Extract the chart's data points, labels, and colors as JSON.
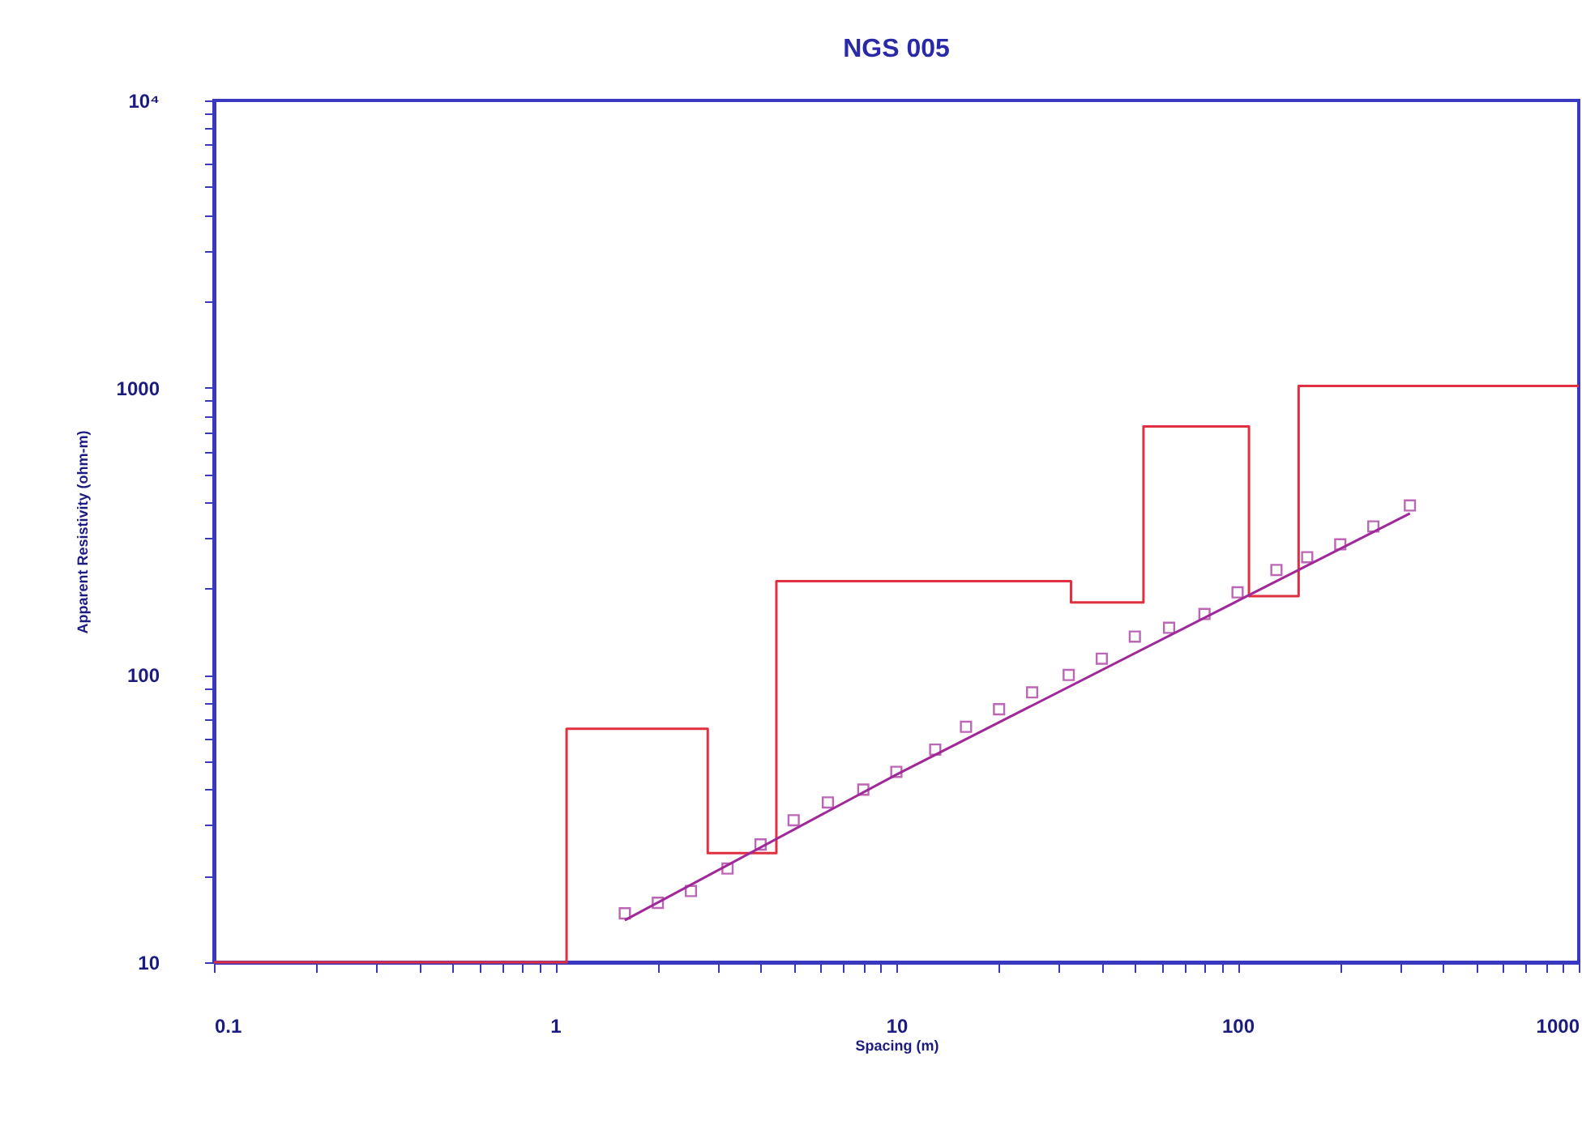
{
  "chart_data": {
    "type": "line",
    "title": "NGS 005",
    "xlabel": "Spacing (m)",
    "ylabel": "Apparent Resistivity (ohm-m)",
    "log": "xy",
    "xlim": [
      0.1,
      1000
    ],
    "ylim": [
      10,
      10000
    ],
    "xticks": [
      0.1,
      {
        "value": 0.2,
        "label": null
      },
      {
        "value": 0.3,
        "label": null
      },
      {
        "value": 0.4,
        "label": null
      },
      {
        "value": 0.5,
        "label": null
      },
      {
        "value": 0.6,
        "label": null
      },
      {
        "value": 0.7,
        "label": null
      },
      {
        "value": 0.8,
        "label": null
      },
      {
        "value": 0.9,
        "label": null
      },
      1,
      {
        "value": 2,
        "label": null
      },
      {
        "value": 3,
        "label": null
      },
      {
        "value": 4,
        "label": null
      },
      {
        "value": 5,
        "label": null
      },
      {
        "value": 6,
        "label": null
      },
      {
        "value": 7,
        "label": null
      },
      {
        "value": 8,
        "label": null
      },
      {
        "value": 9,
        "label": null
      },
      10,
      {
        "value": 20,
        "label": null
      },
      {
        "value": 30,
        "label": null
      },
      {
        "value": 40,
        "label": null
      },
      {
        "value": 50,
        "label": null
      },
      {
        "value": 60,
        "label": null
      },
      {
        "value": 70,
        "label": null
      },
      {
        "value": 80,
        "label": null
      },
      {
        "value": 90,
        "label": null
      },
      100,
      {
        "value": 200,
        "label": null
      },
      {
        "value": 300,
        "label": null
      },
      {
        "value": 400,
        "label": null
      },
      {
        "value": 500,
        "label": null
      },
      {
        "value": 600,
        "label": null
      },
      {
        "value": 700,
        "label": null
      },
      {
        "value": 800,
        "label": null
      },
      {
        "value": 900,
        "label": null
      },
      1000
    ],
    "yticks": [
      10,
      {
        "value": 20,
        "label": null
      },
      {
        "value": 30,
        "label": null
      },
      {
        "value": 40,
        "label": null
      },
      {
        "value": 50,
        "label": null
      },
      {
        "value": 60,
        "label": null
      },
      {
        "value": 70,
        "label": null
      },
      {
        "value": 80,
        "label": null
      },
      {
        "value": 90,
        "label": null
      },
      100,
      {
        "value": 200,
        "label": null
      },
      {
        "value": 300,
        "label": null
      },
      {
        "value": 400,
        "label": null
      },
      {
        "value": 500,
        "label": null
      },
      {
        "value": 600,
        "label": null
      },
      {
        "value": 700,
        "label": null
      },
      {
        "value": 800,
        "label": null
      },
      {
        "value": 900,
        "label": null
      },
      1000,
      {
        "value": 2000,
        "label": null
      },
      {
        "value": 3000,
        "label": null
      },
      {
        "value": 4000,
        "label": null
      },
      {
        "value": 5000,
        "label": null
      },
      {
        "value": 6000,
        "label": null
      },
      {
        "value": 7000,
        "label": null
      },
      {
        "value": 8000,
        "label": null
      },
      {
        "value": 9000,
        "label": null
      },
      {
        "value": 10000,
        "label": "10⁴"
      }
    ],
    "series": [
      {
        "type": "step",
        "color": "#e03040",
        "x": [
          0.1,
          1.08,
          2.8,
          4.45,
          32.5,
          53,
          108,
          151,
          1000
        ],
        "values": [
          10,
          65,
          24,
          212,
          179,
          733,
          188,
          1014,
          1014
        ]
      },
      {
        "color": "#a02898",
        "x": [
          1.6,
          10,
          100,
          320
        ],
        "values": [
          14,
          45,
          181,
          365
        ]
      },
      {
        "type": "scatter",
        "marker": "square",
        "color": "#a02898",
        "x": [
          1.6,
          2,
          2.5,
          3.2,
          4,
          5,
          6.3,
          8,
          10,
          13,
          16,
          20,
          25,
          32,
          40,
          50,
          63,
          80,
          100,
          130,
          160,
          200,
          250,
          320
        ],
        "values": [
          14.8,
          16.1,
          17.7,
          21.2,
          25.7,
          31.2,
          36,
          39.9,
          46,
          55,
          66,
          76,
          87,
          100,
          114,
          136,
          146,
          163,
          194,
          232,
          257,
          285,
          329,
          389
        ]
      }
    ]
  }
}
